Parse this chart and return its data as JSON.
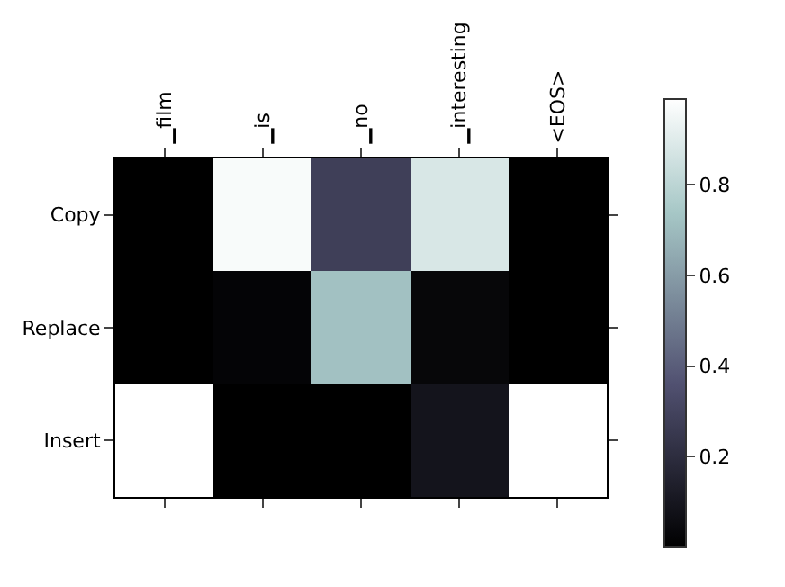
{
  "chart_data": {
    "type": "heatmap",
    "categories": [
      "▁film",
      "▁is",
      "▁no",
      "▁interesting",
      "<EOS>"
    ],
    "y_categories": [
      "Copy",
      "Replace",
      "Insert"
    ],
    "cells": [
      [
        0.0,
        0.97,
        0.28,
        0.88,
        0.0
      ],
      [
        0.0,
        0.02,
        0.72,
        0.03,
        0.0
      ],
      [
        0.99,
        0.0,
        0.0,
        0.09,
        0.99
      ]
    ],
    "clim": [
      0,
      0.99
    ],
    "cticks": [
      0.2,
      0.4,
      0.6,
      0.8
    ]
  }
}
